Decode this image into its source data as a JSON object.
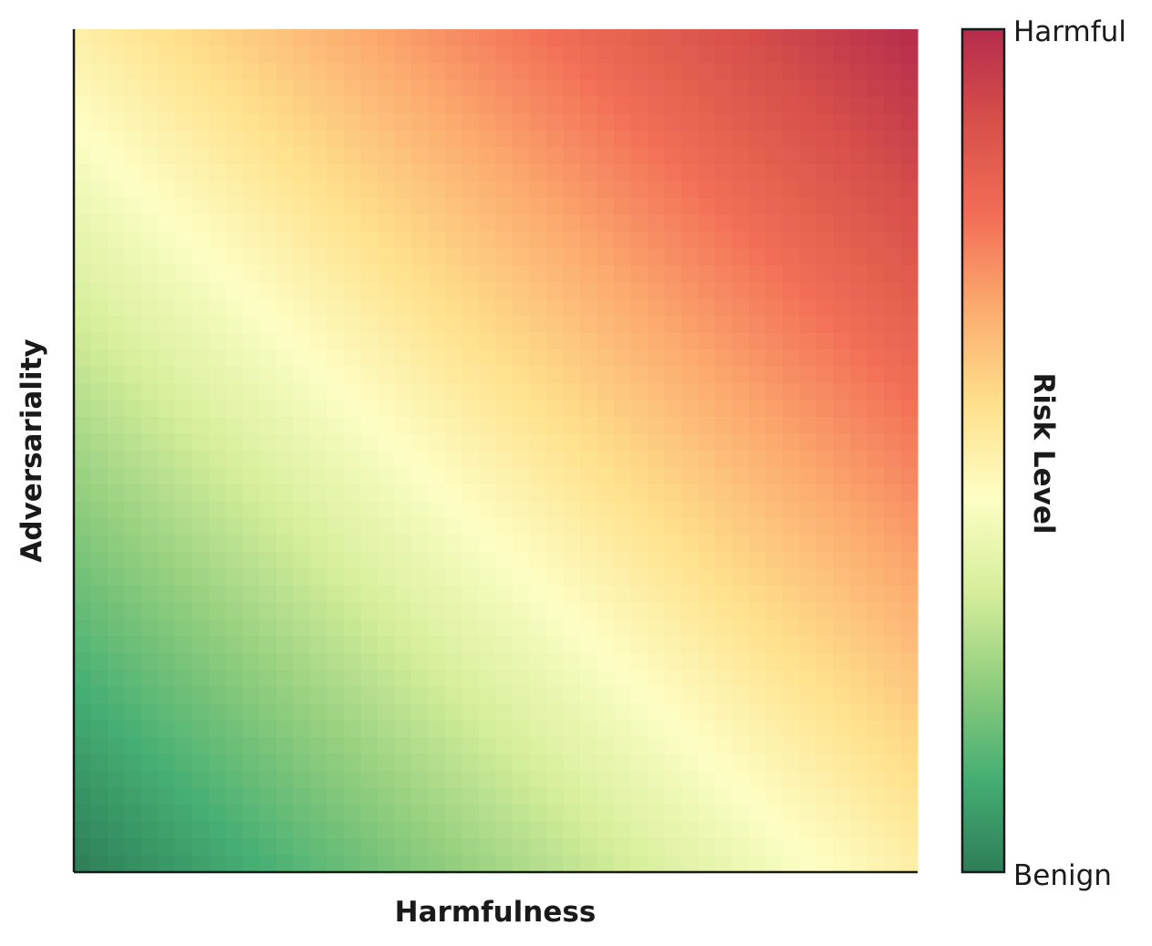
{
  "chart_data": {
    "type": "heatmap",
    "title": "",
    "xlabel": "Harmfulness",
    "ylabel": "Adversariality",
    "x_ticks": [],
    "y_ticks": [],
    "grid": false,
    "colormap": "RdYlGn_r",
    "colormap_stops": [
      "#2e7d57",
      "#45ae73",
      "#8fcd7d",
      "#d6ee9b",
      "#fdfec4",
      "#fee08b",
      "#fcac6f",
      "#f26e56",
      "#d8504a",
      "#b52c4c"
    ],
    "colorbar": {
      "label": "Risk Level",
      "high_label": "Harmful",
      "low_label": "Benign",
      "position": "right"
    },
    "grid_resolution": [
      50,
      50
    ],
    "value_function": "risk rises from bottom-left (benign) to top-right (harmful); value = (harmfulness + adversariality) / 2"
  }
}
